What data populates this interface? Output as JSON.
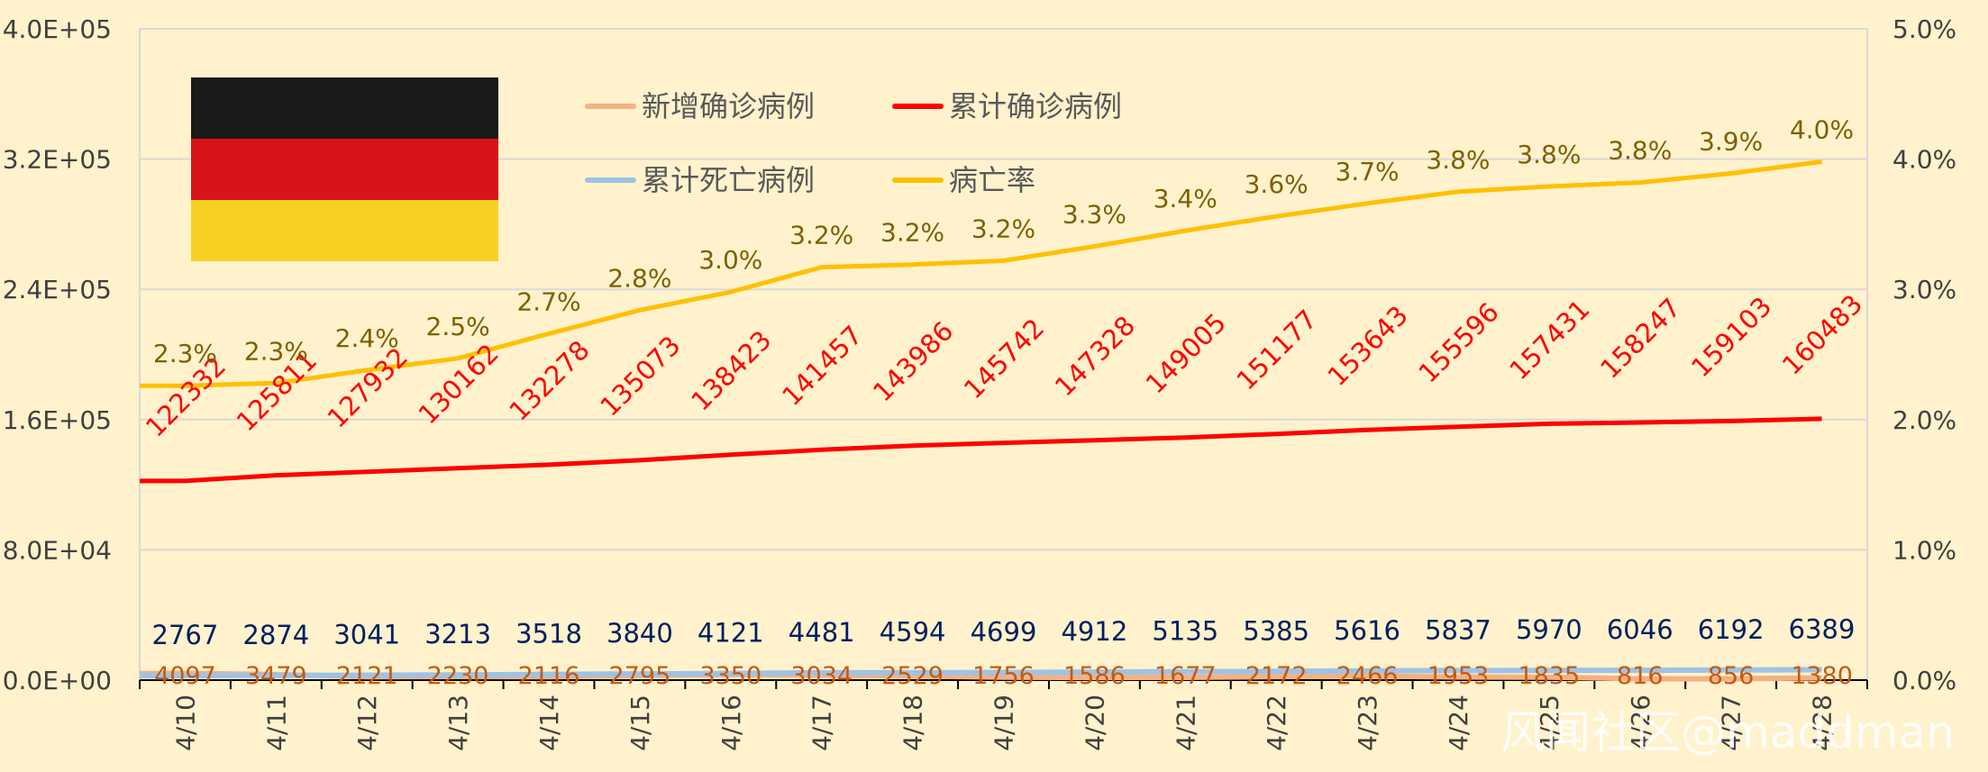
{
  "chart_data": {
    "type": "line",
    "categories": [
      "4/10",
      "4/11",
      "4/12",
      "4/13",
      "4/14",
      "4/15",
      "4/16",
      "4/17",
      "4/18",
      "4/19",
      "4/20",
      "4/21",
      "4/22",
      "4/23",
      "4/24",
      "4/25",
      "4/26",
      "4/27",
      "4/28"
    ],
    "series": [
      {
        "name": "新增确诊病例",
        "axis": "left",
        "color": "#F4B183",
        "values": [
          4097,
          3479,
          2121,
          2230,
          2116,
          2795,
          3350,
          3034,
          2529,
          1756,
          1586,
          1677,
          2172,
          2466,
          1953,
          1835,
          816,
          856,
          1380
        ],
        "labels": [
          "4097",
          "3479",
          "2121",
          "2230",
          "2116",
          "2795",
          "3350",
          "3034",
          "2529",
          "1756",
          "1586",
          "1677",
          "2172",
          "2466",
          "1953",
          "1835",
          "816",
          "856",
          "1380"
        ]
      },
      {
        "name": "累计确诊病例",
        "axis": "left",
        "color": "#FF0000",
        "values": [
          122332,
          125811,
          127932,
          130162,
          132278,
          135073,
          138423,
          141457,
          143986,
          145742,
          147328,
          149005,
          151177,
          153643,
          155596,
          157431,
          158247,
          159103,
          160483
        ],
        "labels": [
          "122332",
          "125811",
          "127932",
          "130162",
          "132278",
          "135073",
          "138423",
          "141457",
          "143986",
          "145742",
          "147328",
          "149005",
          "151177",
          "153643",
          "155596",
          "157431",
          "158247",
          "159103",
          "160483"
        ]
      },
      {
        "name": "累计死亡病例",
        "axis": "left",
        "color": "#9DC3E6",
        "values": [
          2767,
          2874,
          3041,
          3213,
          3518,
          3840,
          4121,
          4481,
          4594,
          4699,
          4912,
          5135,
          5385,
          5616,
          5837,
          5970,
          6046,
          6192,
          6389
        ],
        "labels": [
          "2767",
          "2874",
          "3041",
          "3213",
          "3518",
          "3840",
          "4121",
          "4481",
          "4594",
          "4699",
          "4912",
          "5135",
          "5385",
          "5616",
          "5837",
          "5970",
          "6046",
          "6192",
          "6389"
        ]
      },
      {
        "name": "病亡率",
        "axis": "right",
        "color": "#FFC000",
        "values": [
          2.26,
          2.28,
          2.38,
          2.47,
          2.66,
          2.84,
          2.98,
          3.17,
          3.19,
          3.22,
          3.33,
          3.45,
          3.56,
          3.66,
          3.75,
          3.79,
          3.82,
          3.89,
          3.98
        ],
        "labels": [
          "2.3%",
          "2.3%",
          "2.4%",
          "2.5%",
          "2.7%",
          "2.8%",
          "3.0%",
          "3.2%",
          "3.2%",
          "3.2%",
          "3.3%",
          "3.4%",
          "3.6%",
          "3.7%",
          "3.8%",
          "3.8%",
          "3.8%",
          "3.9%",
          "4.0%"
        ]
      }
    ],
    "left_axis": {
      "min": 0,
      "max": 400000,
      "ticks": [
        0,
        80000,
        160000,
        240000,
        320000,
        400000
      ],
      "tick_labels": [
        "0.0E+00",
        "8.0E+04",
        "1.6E+05",
        "2.4E+05",
        "3.2E+05",
        "4.0E+05"
      ]
    },
    "right_axis": {
      "min": 0,
      "max": 5,
      "ticks": [
        0,
        1,
        2,
        3,
        4,
        5
      ],
      "tick_labels": [
        "0.0%",
        "1.0%",
        "2.0%",
        "3.0%",
        "4.0%",
        "5.0%"
      ]
    },
    "grid": true,
    "legend_position": "top-center",
    "flag_colors": [
      "#1A1A1A",
      "#D9131A",
      "#F8D024"
    ]
  },
  "watermark": "风闻社区@maddman",
  "colors": {
    "background": "#FFF2CC",
    "gridline": "#D9D9D9",
    "axis": "#000000"
  }
}
